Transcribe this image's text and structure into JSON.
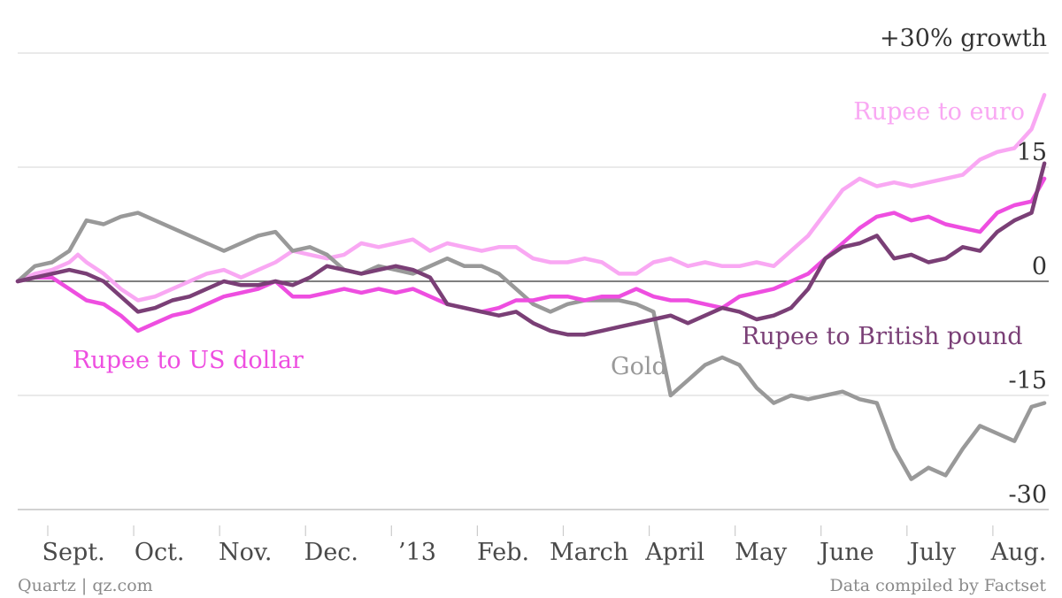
{
  "chart_data": {
    "type": "line",
    "title": "",
    "xlabel": "",
    "ylabel": "",
    "ylim": [
      -30,
      30
    ],
    "grid": true,
    "y_ticks": [
      {
        "value": 30,
        "label": "+30% growth"
      },
      {
        "value": 15,
        "label": "15"
      },
      {
        "value": 0,
        "label": "0"
      },
      {
        "value": -15,
        "label": "-15"
      },
      {
        "value": -30,
        "label": "-30"
      }
    ],
    "x_ticks": [
      "Sept.",
      "Oct.",
      "Nov.",
      "Dec.",
      "’13",
      "Feb.",
      "March",
      "April",
      "May",
      "June",
      "July",
      "Aug."
    ],
    "x_range": [
      0,
      12
    ],
    "series": [
      {
        "name": "Rupee to euro",
        "color": "#f9a8f3",
        "points": [
          [
            0,
            0
          ],
          [
            0.2,
            1
          ],
          [
            0.4,
            1.5
          ],
          [
            0.6,
            2.5
          ],
          [
            0.7,
            3.5
          ],
          [
            0.8,
            2.5
          ],
          [
            1.0,
            1
          ],
          [
            1.2,
            -1
          ],
          [
            1.4,
            -2.5
          ],
          [
            1.6,
            -2
          ],
          [
            1.8,
            -1
          ],
          [
            2.0,
            0
          ],
          [
            2.2,
            1
          ],
          [
            2.4,
            1.5
          ],
          [
            2.6,
            0.5
          ],
          [
            2.8,
            1.5
          ],
          [
            3.0,
            2.5
          ],
          [
            3.2,
            4
          ],
          [
            3.4,
            3.5
          ],
          [
            3.6,
            3
          ],
          [
            3.8,
            3.5
          ],
          [
            4.0,
            5
          ],
          [
            4.2,
            4.5
          ],
          [
            4.4,
            5
          ],
          [
            4.6,
            5.5
          ],
          [
            4.8,
            4
          ],
          [
            5.0,
            5
          ],
          [
            5.2,
            4.5
          ],
          [
            5.4,
            4
          ],
          [
            5.6,
            4.5
          ],
          [
            5.8,
            4.5
          ],
          [
            6.0,
            3
          ],
          [
            6.2,
            2.5
          ],
          [
            6.4,
            2.5
          ],
          [
            6.6,
            3
          ],
          [
            6.8,
            2.5
          ],
          [
            7.0,
            1
          ],
          [
            7.2,
            1
          ],
          [
            7.4,
            2.5
          ],
          [
            7.6,
            3
          ],
          [
            7.8,
            2
          ],
          [
            8.0,
            2.5
          ],
          [
            8.2,
            2
          ],
          [
            8.4,
            2
          ],
          [
            8.6,
            2.5
          ],
          [
            8.8,
            2
          ],
          [
            9.0,
            4
          ],
          [
            9.2,
            6
          ],
          [
            9.4,
            9
          ],
          [
            9.6,
            12
          ],
          [
            9.8,
            13.5
          ],
          [
            10.0,
            12.5
          ],
          [
            10.2,
            13
          ],
          [
            10.4,
            12.5
          ],
          [
            10.6,
            13
          ],
          [
            10.8,
            13.5
          ],
          [
            11.0,
            14
          ],
          [
            11.2,
            16
          ],
          [
            11.4,
            17
          ],
          [
            11.6,
            17.5
          ],
          [
            11.8,
            20
          ],
          [
            11.95,
            24.5
          ]
        ]
      },
      {
        "name": "Rupee to US dollar",
        "color": "#ee4ee0",
        "points": [
          [
            0,
            0
          ],
          [
            0.2,
            0.5
          ],
          [
            0.4,
            0.5
          ],
          [
            0.6,
            -1
          ],
          [
            0.8,
            -2.5
          ],
          [
            1.0,
            -3
          ],
          [
            1.2,
            -4.5
          ],
          [
            1.4,
            -6.5
          ],
          [
            1.6,
            -5.5
          ],
          [
            1.8,
            -4.5
          ],
          [
            2.0,
            -4
          ],
          [
            2.2,
            -3
          ],
          [
            2.4,
            -2
          ],
          [
            2.6,
            -1.5
          ],
          [
            2.8,
            -1
          ],
          [
            3.0,
            0
          ],
          [
            3.2,
            -2
          ],
          [
            3.4,
            -2
          ],
          [
            3.6,
            -1.5
          ],
          [
            3.8,
            -1
          ],
          [
            4.0,
            -1.5
          ],
          [
            4.2,
            -1
          ],
          [
            4.4,
            -1.5
          ],
          [
            4.6,
            -1
          ],
          [
            4.8,
            -2
          ],
          [
            5.0,
            -3
          ],
          [
            5.2,
            -3.5
          ],
          [
            5.4,
            -4
          ],
          [
            5.6,
            -3.5
          ],
          [
            5.8,
            -2.5
          ],
          [
            6.0,
            -2.5
          ],
          [
            6.2,
            -2
          ],
          [
            6.4,
            -2
          ],
          [
            6.6,
            -2.5
          ],
          [
            6.8,
            -2
          ],
          [
            7.0,
            -2
          ],
          [
            7.2,
            -1
          ],
          [
            7.4,
            -2
          ],
          [
            7.6,
            -2.5
          ],
          [
            7.8,
            -2.5
          ],
          [
            8.0,
            -3
          ],
          [
            8.2,
            -3.5
          ],
          [
            8.4,
            -2
          ],
          [
            8.6,
            -1.5
          ],
          [
            8.8,
            -1
          ],
          [
            9.0,
            0
          ],
          [
            9.2,
            1
          ],
          [
            9.4,
            3
          ],
          [
            9.6,
            5
          ],
          [
            9.8,
            7
          ],
          [
            10.0,
            8.5
          ],
          [
            10.2,
            9
          ],
          [
            10.4,
            8
          ],
          [
            10.6,
            8.5
          ],
          [
            10.8,
            7.5
          ],
          [
            11.0,
            7
          ],
          [
            11.2,
            6.5
          ],
          [
            11.4,
            9
          ],
          [
            11.6,
            10
          ],
          [
            11.8,
            10.5
          ],
          [
            11.95,
            13.5
          ]
        ]
      },
      {
        "name": "Rupee to British pound",
        "color": "#7a3f76",
        "points": [
          [
            0,
            0
          ],
          [
            0.2,
            0.5
          ],
          [
            0.4,
            1
          ],
          [
            0.6,
            1.5
          ],
          [
            0.8,
            1
          ],
          [
            1.0,
            0
          ],
          [
            1.2,
            -2
          ],
          [
            1.4,
            -4
          ],
          [
            1.6,
            -3.5
          ],
          [
            1.8,
            -2.5
          ],
          [
            2.0,
            -2
          ],
          [
            2.2,
            -1
          ],
          [
            2.4,
            0
          ],
          [
            2.6,
            -0.5
          ],
          [
            2.8,
            -0.5
          ],
          [
            3.0,
            0
          ],
          [
            3.2,
            -0.5
          ],
          [
            3.4,
            0.5
          ],
          [
            3.6,
            2
          ],
          [
            3.8,
            1.5
          ],
          [
            4.0,
            1
          ],
          [
            4.2,
            1.5
          ],
          [
            4.4,
            2
          ],
          [
            4.6,
            1.5
          ],
          [
            4.8,
            0.5
          ],
          [
            5.0,
            -3
          ],
          [
            5.2,
            -3.5
          ],
          [
            5.4,
            -4
          ],
          [
            5.6,
            -4.5
          ],
          [
            5.8,
            -4
          ],
          [
            6.0,
            -5.5
          ],
          [
            6.2,
            -6.5
          ],
          [
            6.4,
            -7
          ],
          [
            6.6,
            -7
          ],
          [
            6.8,
            -6.5
          ],
          [
            7.0,
            -6
          ],
          [
            7.2,
            -5.5
          ],
          [
            7.4,
            -5
          ],
          [
            7.6,
            -4.5
          ],
          [
            7.8,
            -5.5
          ],
          [
            8.0,
            -4.5
          ],
          [
            8.2,
            -3.5
          ],
          [
            8.4,
            -4
          ],
          [
            8.6,
            -5
          ],
          [
            8.8,
            -4.5
          ],
          [
            9.0,
            -3.5
          ],
          [
            9.2,
            -1
          ],
          [
            9.4,
            3
          ],
          [
            9.6,
            4.5
          ],
          [
            9.8,
            5
          ],
          [
            10.0,
            6
          ],
          [
            10.2,
            3
          ],
          [
            10.4,
            3.5
          ],
          [
            10.6,
            2.5
          ],
          [
            10.8,
            3
          ],
          [
            11.0,
            4.5
          ],
          [
            11.2,
            4
          ],
          [
            11.4,
            6.5
          ],
          [
            11.6,
            8
          ],
          [
            11.8,
            9
          ],
          [
            11.95,
            15.5
          ]
        ]
      },
      {
        "name": "Gold",
        "color": "#999999",
        "points": [
          [
            0,
            0
          ],
          [
            0.2,
            2
          ],
          [
            0.4,
            2.5
          ],
          [
            0.6,
            4
          ],
          [
            0.8,
            8
          ],
          [
            1.0,
            7.5
          ],
          [
            1.2,
            8.5
          ],
          [
            1.4,
            9
          ],
          [
            1.6,
            8
          ],
          [
            1.8,
            7
          ],
          [
            2.0,
            6
          ],
          [
            2.2,
            5
          ],
          [
            2.4,
            4
          ],
          [
            2.6,
            5
          ],
          [
            2.8,
            6
          ],
          [
            3.0,
            6.5
          ],
          [
            3.2,
            4
          ],
          [
            3.4,
            4.5
          ],
          [
            3.6,
            3.5
          ],
          [
            3.8,
            1.5
          ],
          [
            4.0,
            1
          ],
          [
            4.2,
            2
          ],
          [
            4.4,
            1.5
          ],
          [
            4.6,
            1
          ],
          [
            4.8,
            2
          ],
          [
            5.0,
            3
          ],
          [
            5.2,
            2
          ],
          [
            5.4,
            2
          ],
          [
            5.6,
            1
          ],
          [
            5.8,
            -1
          ],
          [
            6.0,
            -3
          ],
          [
            6.2,
            -4
          ],
          [
            6.4,
            -3
          ],
          [
            6.6,
            -2.5
          ],
          [
            6.8,
            -2.5
          ],
          [
            7.0,
            -2.5
          ],
          [
            7.2,
            -3
          ],
          [
            7.4,
            -4
          ],
          [
            7.6,
            -15
          ],
          [
            7.8,
            -13
          ],
          [
            8.0,
            -11
          ],
          [
            8.2,
            -10
          ],
          [
            8.4,
            -11
          ],
          [
            8.6,
            -14
          ],
          [
            8.8,
            -16
          ],
          [
            9.0,
            -15
          ],
          [
            9.2,
            -15.5
          ],
          [
            9.4,
            -15
          ],
          [
            9.6,
            -14.5
          ],
          [
            9.8,
            -15.5
          ],
          [
            10.0,
            -16
          ],
          [
            10.2,
            -22
          ],
          [
            10.4,
            -26
          ],
          [
            10.6,
            -24.5
          ],
          [
            10.8,
            -25.5
          ],
          [
            11.0,
            -22
          ],
          [
            11.2,
            -19
          ],
          [
            11.4,
            -20
          ],
          [
            11.6,
            -21
          ],
          [
            11.8,
            -16.5
          ],
          [
            11.95,
            -16
          ]
        ]
      }
    ],
    "annotations": [
      {
        "series": "Rupee to euro",
        "text": "Rupee to euro"
      },
      {
        "series": "Rupee to US dollar",
        "text": "Rupee to US dollar"
      },
      {
        "series": "Rupee to British pound",
        "text": "Rupee to British pound"
      },
      {
        "series": "Gold",
        "text": "Gold"
      }
    ]
  },
  "footer": {
    "left": "Quartz | qz.com",
    "right": "Data compiled by Factset"
  }
}
